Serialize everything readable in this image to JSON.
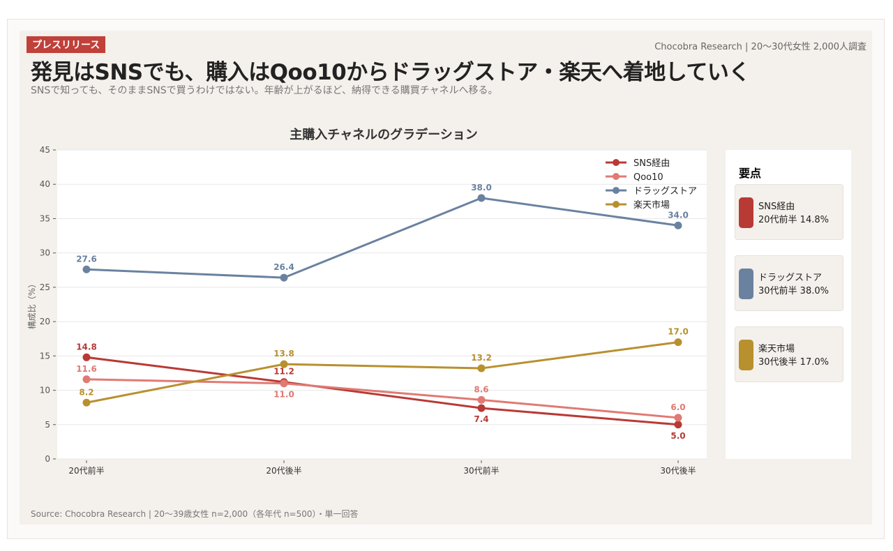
{
  "header": {
    "badge": "プレスリリース",
    "brand": "Chocobra Research | 20〜30代女性 2,000人調査",
    "title": "発見はSNSでも、購入はQoo10からドラッグストア・楽天へ着地していく",
    "subtitle": "SNSで知っても、そのままSNSで買うわけではない。年齢が上がるほど、納得できる購買チャネルへ移る。"
  },
  "chart_data": {
    "type": "line",
    "title": "主購入チャネルのグラデーション",
    "xlabel": "",
    "ylabel": "構成比（%）",
    "ylim": [
      0,
      45
    ],
    "yticks": [
      0,
      5,
      10,
      15,
      20,
      25,
      30,
      35,
      40,
      45
    ],
    "grid": true,
    "legend": "top-right",
    "categories": [
      "20代前半",
      "20代後半",
      "30代前半",
      "30代後半"
    ],
    "series": [
      {
        "name": "SNS経由",
        "color": "#b83a35",
        "values": [
          14.8,
          11.2,
          7.4,
          5.0
        ]
      },
      {
        "name": "Qoo10",
        "color": "#e07a73",
        "values": [
          11.6,
          11.0,
          8.6,
          6.0
        ]
      },
      {
        "name": "ドラッグストア",
        "color": "#6a82a0",
        "values": [
          27.6,
          26.4,
          38.0,
          34.0
        ]
      },
      {
        "name": "楽天市場",
        "color": "#b8902e",
        "values": [
          8.2,
          13.8,
          13.2,
          17.0
        ]
      }
    ]
  },
  "side": {
    "title": "要点",
    "items": [
      {
        "name": "SNS経由",
        "detail": "20代前半 14.8%",
        "color": "#b83a35"
      },
      {
        "name": "ドラッグストア",
        "detail": "30代前半 38.0%",
        "color": "#6a82a0"
      },
      {
        "name": "楽天市場",
        "detail": "30代後半 17.0%",
        "color": "#b8902e"
      }
    ]
  },
  "source": "Source: Chocobra Research | 20〜39歳女性 n=2,000（各年代 n=500）・単一回答"
}
